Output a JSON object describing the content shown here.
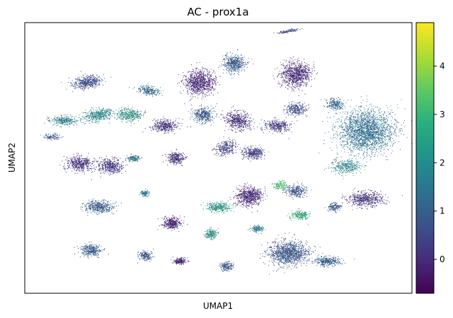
{
  "chart_data": {
    "type": "scatter",
    "title": "AC - prox1a",
    "xlabel": "UMAP1",
    "ylabel": "UMAP2",
    "x_ticks_shown": false,
    "y_ticks_shown": false,
    "grid": false,
    "colorbar": {
      "colormap": "viridis",
      "vmin": -0.7,
      "vmax": 4.9,
      "ticks": [
        0,
        1,
        2,
        3,
        4
      ],
      "tick_labels": [
        "0",
        "1",
        "2",
        "3",
        "4"
      ],
      "position": "right"
    },
    "colors": {
      "low": "#440154",
      "mid": "#21918c",
      "high": "#fde725"
    },
    "clusters": [
      {
        "id": "c1",
        "x": 0.16,
        "y": 0.78,
        "w": 0.07,
        "h": 0.04,
        "rot": -10,
        "n": 500,
        "mean": 0.6,
        "spread": 0.5
      },
      {
        "id": "c2",
        "x": 0.32,
        "y": 0.75,
        "w": 0.05,
        "h": 0.03,
        "rot": 10,
        "n": 250,
        "mean": 1.2,
        "spread": 0.7
      },
      {
        "id": "c3",
        "x": 0.1,
        "y": 0.64,
        "w": 0.06,
        "h": 0.03,
        "rot": 0,
        "n": 300,
        "mean": 1.5,
        "spread": 0.8
      },
      {
        "id": "c4",
        "x": 0.19,
        "y": 0.66,
        "w": 0.07,
        "h": 0.04,
        "rot": -10,
        "n": 450,
        "mean": 1.8,
        "spread": 0.8
      },
      {
        "id": "c5",
        "x": 0.27,
        "y": 0.66,
        "w": 0.06,
        "h": 0.04,
        "rot": 5,
        "n": 400,
        "mean": 2.0,
        "spread": 0.9
      },
      {
        "id": "c6",
        "x": 0.07,
        "y": 0.58,
        "w": 0.04,
        "h": 0.02,
        "rot": 0,
        "n": 120,
        "mean": 0.8,
        "spread": 0.6
      },
      {
        "id": "c7",
        "x": 0.14,
        "y": 0.48,
        "w": 0.06,
        "h": 0.05,
        "rot": 0,
        "n": 450,
        "mean": 0.0,
        "spread": 0.5
      },
      {
        "id": "c8",
        "x": 0.22,
        "y": 0.47,
        "w": 0.06,
        "h": 0.05,
        "rot": 0,
        "n": 450,
        "mean": 0.2,
        "spread": 0.5
      },
      {
        "id": "c9",
        "x": 0.36,
        "y": 0.62,
        "w": 0.06,
        "h": 0.04,
        "rot": 0,
        "n": 400,
        "mean": 0.1,
        "spread": 0.4
      },
      {
        "id": "c10",
        "x": 0.39,
        "y": 0.5,
        "w": 0.04,
        "h": 0.04,
        "rot": 0,
        "n": 300,
        "mean": 0.1,
        "spread": 0.5
      },
      {
        "id": "c11",
        "x": 0.46,
        "y": 0.66,
        "w": 0.05,
        "h": 0.05,
        "rot": 0,
        "n": 400,
        "mean": 0.8,
        "spread": 0.7
      },
      {
        "id": "c12",
        "x": 0.45,
        "y": 0.78,
        "w": 0.07,
        "h": 0.08,
        "rot": 0,
        "n": 900,
        "mean": -0.1,
        "spread": 0.4
      },
      {
        "id": "c13",
        "x": 0.54,
        "y": 0.85,
        "w": 0.05,
        "h": 0.06,
        "rot": 0,
        "n": 500,
        "mean": 0.9,
        "spread": 0.6
      },
      {
        "id": "c14",
        "x": 0.55,
        "y": 0.64,
        "w": 0.06,
        "h": 0.06,
        "rot": 15,
        "n": 500,
        "mean": 0.0,
        "spread": 0.5
      },
      {
        "id": "c15",
        "x": 0.52,
        "y": 0.54,
        "w": 0.05,
        "h": 0.05,
        "rot": -20,
        "n": 300,
        "mean": 0.3,
        "spread": 0.6
      },
      {
        "id": "c16",
        "x": 0.7,
        "y": 0.81,
        "w": 0.07,
        "h": 0.08,
        "rot": 0,
        "n": 900,
        "mean": -0.1,
        "spread": 0.4
      },
      {
        "id": "c17",
        "x": 0.68,
        "y": 0.97,
        "w": 0.05,
        "h": 0.01,
        "rot": -10,
        "n": 120,
        "mean": 0.5,
        "spread": 0.5
      },
      {
        "id": "c18",
        "x": 0.65,
        "y": 0.62,
        "w": 0.06,
        "h": 0.04,
        "rot": 0,
        "n": 350,
        "mean": 0.2,
        "spread": 0.6
      },
      {
        "id": "c19",
        "x": 0.7,
        "y": 0.68,
        "w": 0.05,
        "h": 0.04,
        "rot": 0,
        "n": 300,
        "mean": 0.6,
        "spread": 0.7
      },
      {
        "id": "c20",
        "x": 0.8,
        "y": 0.7,
        "w": 0.04,
        "h": 0.04,
        "rot": 0,
        "n": 250,
        "mean": 1.2,
        "spread": 0.8
      },
      {
        "id": "c21",
        "x": 0.88,
        "y": 0.6,
        "w": 0.13,
        "h": 0.14,
        "rot": 0,
        "n": 2200,
        "mean": 1.3,
        "spread": 0.5
      },
      {
        "id": "c22",
        "x": 0.83,
        "y": 0.47,
        "w": 0.07,
        "h": 0.05,
        "rot": 0,
        "n": 350,
        "mean": 1.8,
        "spread": 0.8
      },
      {
        "id": "c23",
        "x": 0.88,
        "y": 0.35,
        "w": 0.08,
        "h": 0.05,
        "rot": 0,
        "n": 550,
        "mean": 0.1,
        "spread": 0.5
      },
      {
        "id": "c24",
        "x": 0.7,
        "y": 0.38,
        "w": 0.05,
        "h": 0.04,
        "rot": 0,
        "n": 300,
        "mean": 0.7,
        "spread": 0.7
      },
      {
        "id": "c25",
        "x": 0.58,
        "y": 0.36,
        "w": 0.06,
        "h": 0.06,
        "rot": 0,
        "n": 700,
        "mean": -0.1,
        "spread": 0.4
      },
      {
        "id": "c26",
        "x": 0.5,
        "y": 0.32,
        "w": 0.06,
        "h": 0.03,
        "rot": 0,
        "n": 350,
        "mean": 2.2,
        "spread": 0.8
      },
      {
        "id": "c27",
        "x": 0.71,
        "y": 0.29,
        "w": 0.04,
        "h": 0.03,
        "rot": 0,
        "n": 250,
        "mean": 2.6,
        "spread": 0.8
      },
      {
        "id": "c28",
        "x": 0.19,
        "y": 0.32,
        "w": 0.07,
        "h": 0.04,
        "rot": 0,
        "n": 450,
        "mean": 0.9,
        "spread": 0.6
      },
      {
        "id": "c29",
        "x": 0.38,
        "y": 0.26,
        "w": 0.04,
        "h": 0.04,
        "rot": 0,
        "n": 350,
        "mean": -0.1,
        "spread": 0.4
      },
      {
        "id": "c30",
        "x": 0.48,
        "y": 0.22,
        "w": 0.03,
        "h": 0.03,
        "rot": 0,
        "n": 220,
        "mean": 2.0,
        "spread": 0.9
      },
      {
        "id": "c31",
        "x": 0.17,
        "y": 0.16,
        "w": 0.05,
        "h": 0.04,
        "rot": 0,
        "n": 350,
        "mean": 0.9,
        "spread": 0.6
      },
      {
        "id": "c32",
        "x": 0.31,
        "y": 0.14,
        "w": 0.03,
        "h": 0.03,
        "rot": 0,
        "n": 200,
        "mean": 0.8,
        "spread": 0.6
      },
      {
        "id": "c33",
        "x": 0.4,
        "y": 0.12,
        "w": 0.03,
        "h": 0.02,
        "rot": 0,
        "n": 180,
        "mean": -0.2,
        "spread": 0.4
      },
      {
        "id": "c34",
        "x": 0.52,
        "y": 0.1,
        "w": 0.03,
        "h": 0.03,
        "rot": 0,
        "n": 180,
        "mean": 1.0,
        "spread": 0.7
      },
      {
        "id": "c35",
        "x": 0.68,
        "y": 0.15,
        "w": 0.09,
        "h": 0.08,
        "rot": 0,
        "n": 1200,
        "mean": 0.8,
        "spread": 0.6
      },
      {
        "id": "c36",
        "x": 0.78,
        "y": 0.12,
        "w": 0.06,
        "h": 0.03,
        "rot": 0,
        "n": 350,
        "mean": 1.0,
        "spread": 0.5
      },
      {
        "id": "c37",
        "x": 0.66,
        "y": 0.4,
        "w": 0.03,
        "h": 0.03,
        "rot": 0,
        "n": 150,
        "mean": 3.0,
        "spread": 0.8
      },
      {
        "id": "c38",
        "x": 0.31,
        "y": 0.37,
        "w": 0.02,
        "h": 0.02,
        "rot": 0,
        "n": 120,
        "mean": 1.5,
        "spread": 0.7
      },
      {
        "id": "c39",
        "x": 0.59,
        "y": 0.52,
        "w": 0.05,
        "h": 0.04,
        "rot": 0,
        "n": 350,
        "mean": 0.3,
        "spread": 0.5
      },
      {
        "id": "c40",
        "x": 0.28,
        "y": 0.5,
        "w": 0.03,
        "h": 0.02,
        "rot": 0,
        "n": 150,
        "mean": 1.6,
        "spread": 0.8
      },
      {
        "id": "c41",
        "x": 0.6,
        "y": 0.24,
        "w": 0.03,
        "h": 0.02,
        "rot": 0,
        "n": 150,
        "mean": 1.4,
        "spread": 0.7
      },
      {
        "id": "c42",
        "x": 0.8,
        "y": 0.32,
        "w": 0.03,
        "h": 0.03,
        "rot": 0,
        "n": 150,
        "mean": 0.9,
        "spread": 0.7
      }
    ]
  }
}
